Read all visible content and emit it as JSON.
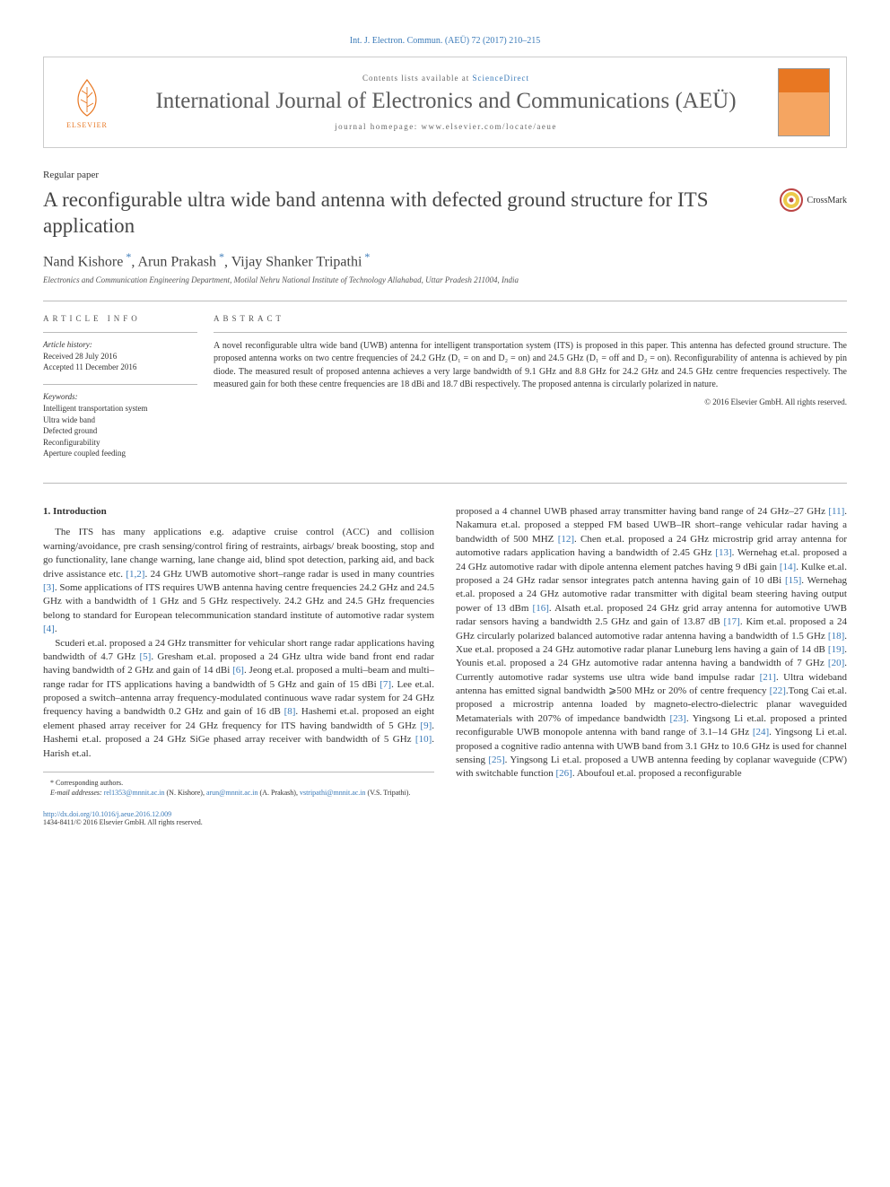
{
  "colors": {
    "link": "#3a7ab8",
    "text": "#333333",
    "title": "#444444",
    "elsevier_orange": "#e87722",
    "rule": "#bbbbbb"
  },
  "header": {
    "citation": "Int. J. Electron. Commun. (AEÜ) 72 (2017) 210–215",
    "contents_prefix": "Contents lists available at ",
    "contents_link": "ScienceDirect",
    "journal_title": "International Journal of Electronics and Communications (AEÜ)",
    "homepage_prefix": "journal homepage: ",
    "homepage": "www.elsevier.com/locate/aeue",
    "elsevier_label": "ELSEVIER"
  },
  "paper_type": "Regular paper",
  "title": "A reconfigurable ultra wide band antenna with defected ground structure for ITS application",
  "crossmark_label": "CrossMark",
  "authors_html": "Nand Kishore *, Arun Prakash *, Vijay Shanker Tripathi *",
  "affiliation": "Electronics and Communication Engineering Department, Motilal Nehru National Institute of Technology Allahabad, Uttar Pradesh 211004, India",
  "article_info": {
    "label": "ARTICLE INFO",
    "history_heading": "Article history:",
    "history_lines": [
      "Received 28 July 2016",
      "Accepted 11 December 2016"
    ],
    "keywords_heading": "Keywords:",
    "keywords": [
      "Intelligent transportation system",
      "Ultra wide band",
      "Defected ground",
      "Reconfigurability",
      "Aperture coupled feeding"
    ]
  },
  "abstract": {
    "label": "ABSTRACT",
    "body": "A novel reconfigurable ultra wide band (UWB) antenna for intelligent transportation system (ITS) is proposed in this paper. This antenna has defected ground structure. The proposed antenna works on two centre frequencies of 24.2 GHz (D₁ = on and D₂ = on) and 24.5 GHz (D₁ = off and D₂ = on). Reconfigurability of antenna is achieved by pin diode. The measured result of proposed antenna achieves a very large bandwidth of 9.1 GHz and 8.8 GHz for 24.2 GHz and 24.5 GHz centre frequencies respectively. The measured gain for both these centre frequencies are 18 dBi and 18.7 dBi respectively. The proposed antenna is circularly polarized in nature.",
    "copyright": "© 2016 Elsevier GmbH. All rights reserved."
  },
  "body": {
    "section_heading": "1. Introduction",
    "col1_p1": "The ITS has many applications e.g. adaptive cruise control (ACC) and collision warning/avoidance, pre crash sensing/control firing of restraints, airbags/ break boosting, stop and go functionality, lane change warning, lane change aid, blind spot detection, parking aid, and back drive assistance etc. [1,2]. 24 GHz UWB automotive short–range radar is used in many countries [3]. Some applications of ITS requires UWB antenna having centre frequencies 24.2 GHz and 24.5 GHz with a bandwidth of 1 GHz and 5 GHz respectively. 24.2 GHz and 24.5 GHz frequencies belong to standard for European telecommunication standard institute of automotive radar system [4].",
    "col1_p2": "Scuderi et.al. proposed a 24 GHz transmitter for vehicular short range radar applications having bandwidth of 4.7 GHz [5]. Gresham et.al. proposed a 24 GHz ultra wide band front end radar having bandwidth of 2 GHz and gain of 14 dBi [6]. Jeong et.al. proposed a multi–beam and multi–range radar for ITS applications having a bandwidth of 5 GHz and gain of 15 dBi [7]. Lee et.al. proposed a switch–antenna array frequency-modulated continuous wave radar system for 24 GHz frequency having a bandwidth 0.2 GHz and gain of 16 dB [8]. Hashemi et.al. proposed an eight element phased array receiver for 24 GHz frequency for ITS having bandwidth of 5 GHz [9]. Hashemi et.al. proposed a 24 GHz SiGe phased array receiver with bandwidth of 5 GHz [10]. Harish et.al.",
    "col2_p1": "proposed a 4 channel UWB phased array transmitter having band range of 24 GHz–27 GHz [11]. Nakamura et.al. proposed a stepped FM based UWB–IR short–range vehicular radar having a bandwidth of 500 MHZ [12]. Chen et.al. proposed a 24 GHz microstrip grid array antenna for automotive radars application having a bandwidth of 2.45 GHz [13]. Wernehag et.al. proposed a 24 GHz automotive radar with dipole antenna element patches having 9 dBi gain [14]. Kulke et.al. proposed a 24 GHz radar sensor integrates patch antenna having gain of 10 dBi [15]. Wernehag et.al. proposed a 24 GHz automotive radar transmitter with digital beam steering having output power of 13 dBm [16]. Alsath et.al. proposed 24 GHz grid array antenna for automotive UWB radar sensors having a bandwidth 2.5 GHz and gain of 13.87 dB [17]. Kim et.al. proposed a 24 GHz circularly polarized balanced automotive radar antenna having a bandwidth of 1.5 GHz [18]. Xue et.al. proposed a 24 GHz automotive radar planar Luneburg lens having a gain of 14 dB [19]. Younis et.al. proposed a 24 GHz automotive radar antenna having a bandwidth of 7 GHz [20]. Currently automotive radar systems use ultra wide band impulse radar [21]. Ultra wideband antenna has emitted signal bandwidth ⩾500 MHz or 20% of centre frequency [22].Tong Cai et.al. proposed a microstrip antenna loaded by magneto-electro-dielectric planar waveguided Metamaterials with 207% of impedance bandwidth [23]. Yingsong Li et.al. proposed a printed reconfigurable UWB monopole antenna with band range of 3.1–14 GHz [24]. Yingsong Li et.al. proposed a cognitive radio antenna with UWB band from 3.1 GHz to 10.6 GHz is used for channel sensing [25]. Yingsong Li et.al. proposed a UWB antenna feeding by coplanar waveguide (CPW) with switchable function [26]. Aboufoul et.al. proposed a reconfigurable"
  },
  "footnotes": {
    "corresponding": "* Corresponding authors.",
    "email_label": "E-mail addresses:",
    "emails": [
      {
        "addr": "rel1353@mnnit.ac.in",
        "who": "(N. Kishore)"
      },
      {
        "addr": "arun@mnnit.ac.in",
        "who": "(A. Prakash)"
      },
      {
        "addr": "vstripathi@mnnit.ac.in",
        "who": "(V.S. Tripathi)"
      }
    ]
  },
  "footer": {
    "doi": "http://dx.doi.org/10.1016/j.aeue.2016.12.009",
    "issn_line": "1434-8411/© 2016 Elsevier GmbH. All rights reserved."
  }
}
